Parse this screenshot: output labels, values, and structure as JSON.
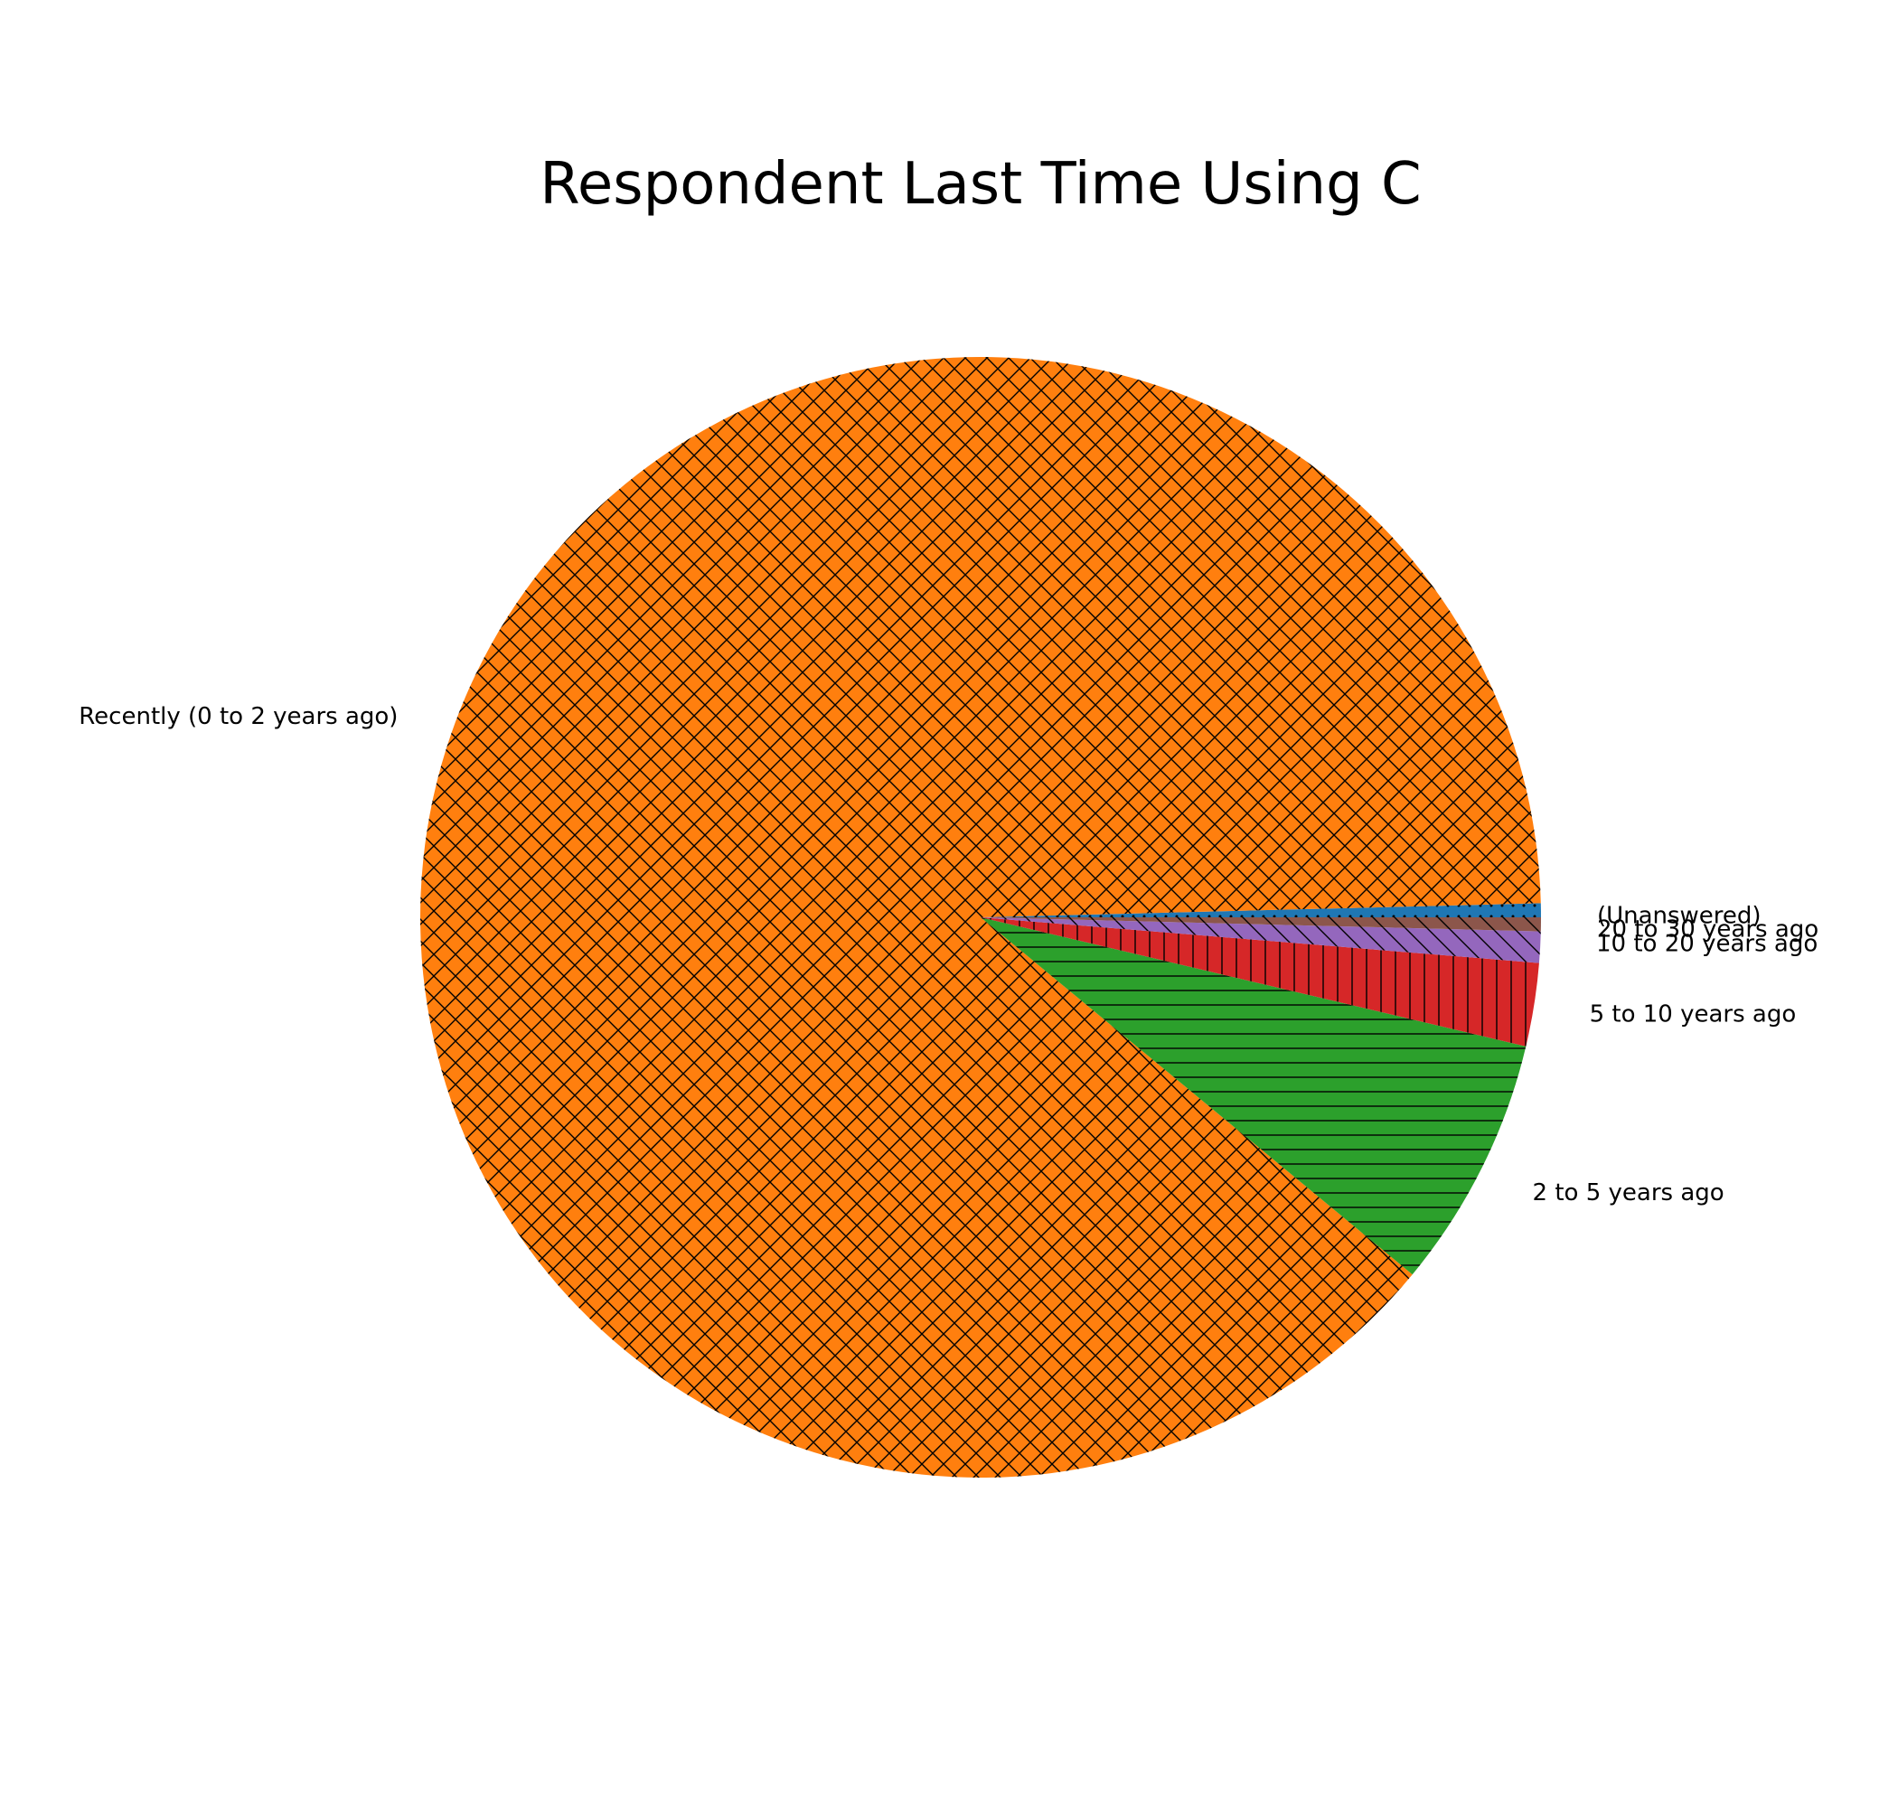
{
  "chart_data": {
    "type": "pie",
    "title": "Respondent Last Time Using C",
    "slices": [
      {
        "label": "(Unanswered)",
        "value": 0.4,
        "color": "#1f77b4",
        "hatch": "dots"
      },
      {
        "label": "Recently (0 to 2 years ago)",
        "value": 88.6,
        "color": "#ff7f0e",
        "hatch": "cross"
      },
      {
        "label": "2 to 5 years ago",
        "value": 7.3,
        "color": "#2ca02c",
        "hatch": "horizontal"
      },
      {
        "label": "5 to 10 years ago",
        "value": 2.4,
        "color": "#d62728",
        "hatch": "vertical"
      },
      {
        "label": "10 to 20 years ago",
        "value": 0.9,
        "color": "#9467bd",
        "hatch": "diagonal"
      },
      {
        "label": "20 to 30 years ago",
        "value": 0.4,
        "color": "#8c564b",
        "hatch": "diagonal"
      }
    ],
    "start_angle_deg": 0,
    "direction": "counterclockwise",
    "legend": "none"
  }
}
